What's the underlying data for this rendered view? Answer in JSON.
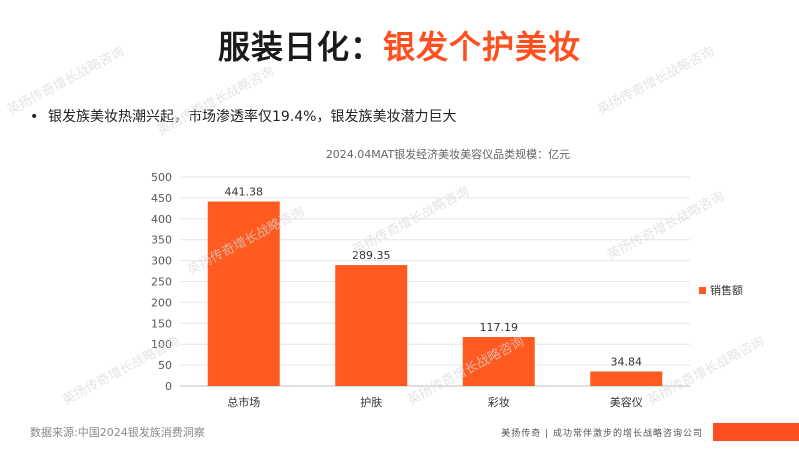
{
  "header": {
    "title_prefix": "服装日化：",
    "title_highlight": "银发个护美妆"
  },
  "bullet": {
    "text": "银发族美妆热潮兴起，市场渗透率仅19.4%，银发族美妆潜力巨大"
  },
  "chart_data": {
    "type": "bar",
    "title": "2024.04MAT银发经济美妆美容仪品类规模：亿元",
    "categories": [
      "总市场",
      "护肤",
      "彩妆",
      "美容仪"
    ],
    "series": [
      {
        "name": "销售额",
        "values": [
          441.38,
          289.35,
          117.19,
          34.84
        ]
      }
    ],
    "data_labels": [
      "441.38",
      "289.35",
      "117.19",
      "34.84"
    ],
    "yticks": [
      0,
      50,
      100,
      150,
      200,
      250,
      300,
      350,
      400,
      450,
      500
    ],
    "ylim": [
      0,
      500
    ],
    "xlabel": "",
    "ylabel": "",
    "grid": true,
    "legend": "right",
    "bar_color": "#ff5a1f"
  },
  "footer": {
    "source": "数据来源:中国2024银发族消费洞察",
    "brand": "美扬传奇 | 成功常伴激步的增长战略咨询公司"
  },
  "watermark": {
    "text": "英扬传奇增长战略咨询"
  }
}
